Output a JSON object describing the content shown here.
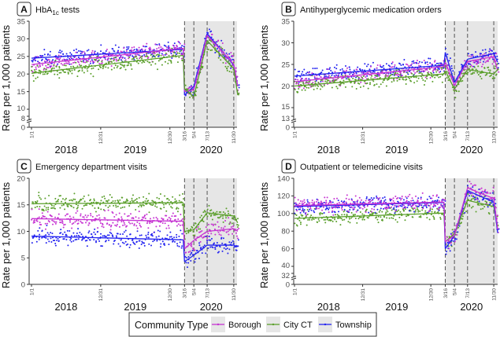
{
  "chart_data": {
    "shared": {
      "type": "line",
      "x_unit": "week since 1/1/2018",
      "x_tick_labels": [
        "1/1",
        "12/31",
        "12/30",
        "3/16",
        "5/4",
        "7/13",
        "11/30"
      ],
      "x_tick_weeks": [
        0,
        52,
        104,
        115,
        122,
        132,
        152
      ],
      "year_labels": [
        "2018",
        "2019",
        "2020"
      ],
      "dashed_lines_at": [
        "3/16",
        "5/4",
        "7/13",
        "11/30"
      ],
      "shaded_period": "3/16 – 11/30 2020 and after",
      "ylabel": "Rate per 1,000 patients",
      "grid": false,
      "segments_weeks": [
        [
          0,
          114
        ],
        [
          115,
          122
        ],
        [
          122,
          132
        ],
        [
          132,
          152
        ],
        [
          152,
          155
        ]
      ]
    },
    "colors": {
      "Borough": "#c634d2",
      "City CT": "#5b9f2c",
      "Township": "#2424f0"
    },
    "legend": {
      "title": "Community Type",
      "position": "bottom",
      "entries": [
        "Borough",
        "City CT",
        "Township"
      ]
    },
    "panels": [
      {
        "letter": "A",
        "title_main": "HbA",
        "title_sub": "1c",
        "title_rest": " tests",
        "yticks": [
          0,
          8,
          10,
          15,
          20,
          25,
          30,
          35
        ],
        "ylim": [
          0,
          35
        ],
        "axis_break": true,
        "series": [
          {
            "name": "Township",
            "segments": [
              [
                24.5,
                27.0
              ],
              [
                14.0,
                16.5
              ],
              [
                16.5,
                31.5
              ],
              [
                31.5,
                22.5
              ],
              [
                22.5,
                16.5
              ]
            ]
          },
          {
            "name": "Borough",
            "segments": [
              [
                22.7,
                27.3
              ],
              [
                15.0,
                15.5
              ],
              [
                15.5,
                31.0
              ],
              [
                31.0,
                22.8
              ],
              [
                22.8,
                16.5
              ]
            ]
          },
          {
            "name": "City CT",
            "segments": [
              [
                20.2,
                25.3
              ],
              [
                15.8,
                13.5
              ],
              [
                13.5,
                29.5
              ],
              [
                29.5,
                21.5
              ],
              [
                21.5,
                14.0
              ]
            ]
          }
        ]
      },
      {
        "letter": "B",
        "title_main": "Antihyperglycemic medication orders",
        "title_sub": "",
        "title_rest": "",
        "yticks": [
          0,
          13,
          15,
          20,
          25,
          30,
          35
        ],
        "ylim": [
          0,
          35
        ],
        "axis_break": true,
        "series": [
          {
            "name": "Township",
            "segments": [
              [
                22.3,
                24.8
              ],
              [
                27.8,
                20.8
              ],
              [
                20.8,
                26.2
              ],
              [
                26.2,
                27.5
              ],
              [
                27.5,
                25.5
              ]
            ]
          },
          {
            "name": "Borough",
            "segments": [
              [
                21.0,
                24.5
              ],
              [
                25.5,
                20.2
              ],
              [
                20.2,
                25.7
              ],
              [
                25.7,
                26.8
              ],
              [
                26.8,
                23.5
              ]
            ]
          },
          {
            "name": "City CT",
            "segments": [
              [
                20.0,
                22.8
              ],
              [
                23.5,
                19.3
              ],
              [
                19.3,
                23.8
              ],
              [
                23.8,
                22.8
              ],
              [
                22.8,
                23.8
              ]
            ]
          }
        ]
      },
      {
        "letter": "C",
        "title_main": "Emergency department visits",
        "title_sub": "",
        "title_rest": "",
        "yticks": [
          0,
          5,
          10,
          15,
          20
        ],
        "ylim": [
          0,
          20
        ],
        "axis_break": false,
        "series": [
          {
            "name": "City CT",
            "segments": [
              [
                15.2,
                15.4
              ],
              [
                10.0,
                10.3
              ],
              [
                10.3,
                13.5
              ],
              [
                13.5,
                12.9
              ],
              [
                12.9,
                11.6
              ]
            ]
          },
          {
            "name": "Borough",
            "segments": [
              [
                12.4,
                11.9
              ],
              [
                6.7,
                8.3
              ],
              [
                8.3,
                10.0
              ],
              [
                10.0,
                10.5
              ],
              [
                10.5,
                10.0
              ]
            ]
          },
          {
            "name": "Township",
            "segments": [
              [
                9.1,
                8.4
              ],
              [
                4.3,
                5.5
              ],
              [
                5.5,
                7.4
              ],
              [
                7.4,
                7.4
              ],
              [
                7.4,
                7.1
              ]
            ]
          }
        ]
      },
      {
        "letter": "D",
        "title_main": "Outpatient or telemedicine visits",
        "title_sub": "",
        "title_rest": "",
        "yticks": [
          0,
          32,
          40,
          60,
          80,
          100,
          120,
          140
        ],
        "ylim": [
          0,
          140
        ],
        "axis_break": true,
        "series": [
          {
            "name": "City CT",
            "segments": [
              [
                94.5,
                100.5
              ],
              [
                68.0,
                77.0
              ],
              [
                77.0,
                115.0
              ],
              [
                115.0,
                108.0
              ],
              [
                108.0,
                85.0
              ]
            ]
          },
          {
            "name": "Township",
            "segments": [
              [
                108.0,
                112.5
              ],
              [
                60.0,
                75.0
              ],
              [
                75.0,
                126.0
              ],
              [
                126.0,
                113.0
              ],
              [
                113.0,
                78.0
              ]
            ]
          },
          {
            "name": "Borough",
            "segments": [
              [
                109.0,
                113.0
              ],
              [
                68.0,
                75.0
              ],
              [
                75.0,
                129.0
              ],
              [
                129.0,
                117.0
              ],
              [
                117.0,
                82.0
              ]
            ]
          }
        ]
      }
    ]
  }
}
